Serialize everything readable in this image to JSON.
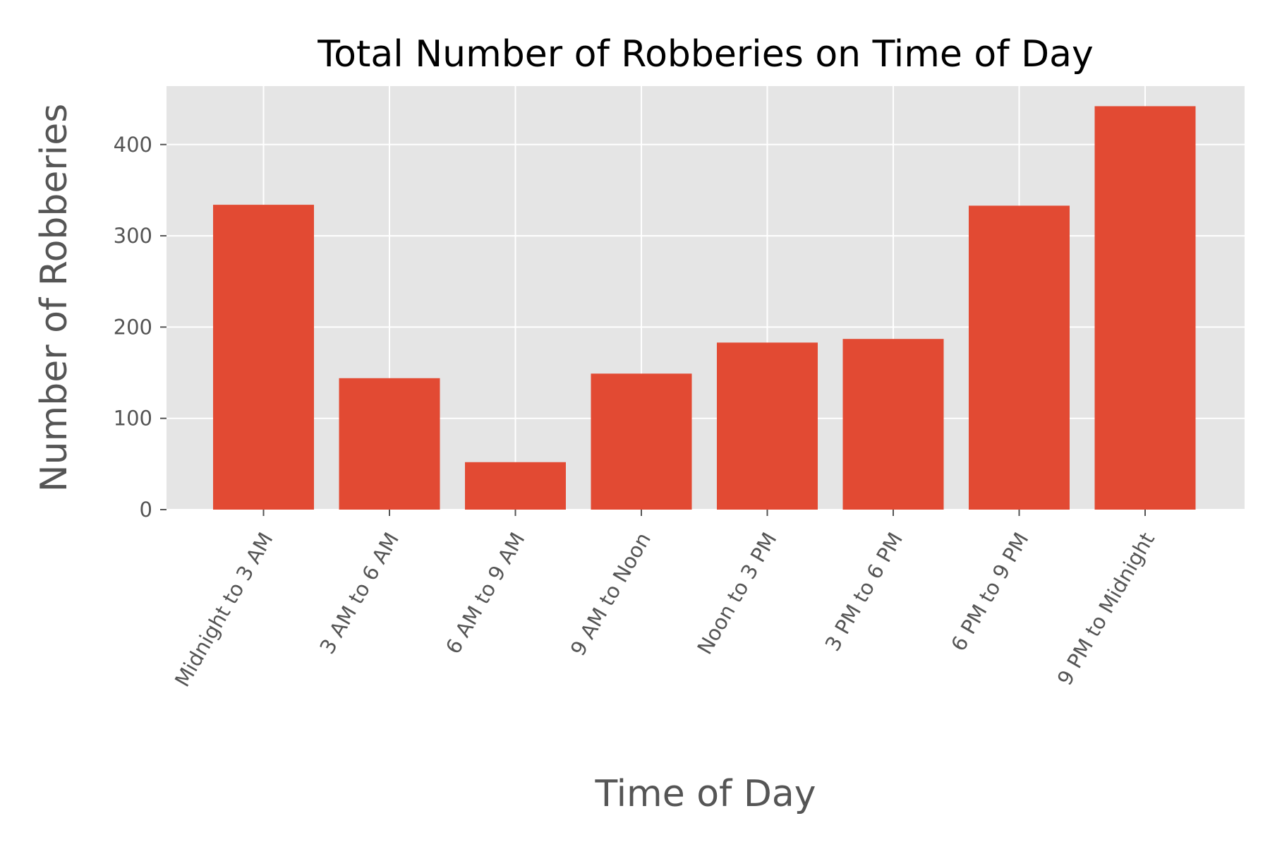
{
  "chart_data": {
    "type": "bar",
    "title": "Total Number of Robberies on Time of Day",
    "xlabel": "Time of Day",
    "ylabel": "Number of Robberies",
    "categories": [
      "Midnight to 3 AM",
      "3 AM to 6 AM",
      "6 AM to 9 AM",
      "9 AM to Noon",
      "Noon to 3 PM",
      "3 PM to 6 PM",
      "6 PM to 9 PM",
      "9 PM to Midnight"
    ],
    "values": [
      334,
      144,
      52,
      149,
      183,
      187,
      333,
      442
    ],
    "ylim": [
      0,
      464
    ],
    "yticks": [
      0,
      100,
      200,
      300,
      400
    ],
    "grid": true,
    "colors": {
      "bar": "#E24A33",
      "plot_bg": "#E5E5E5",
      "grid": "#FFFFFF"
    }
  }
}
